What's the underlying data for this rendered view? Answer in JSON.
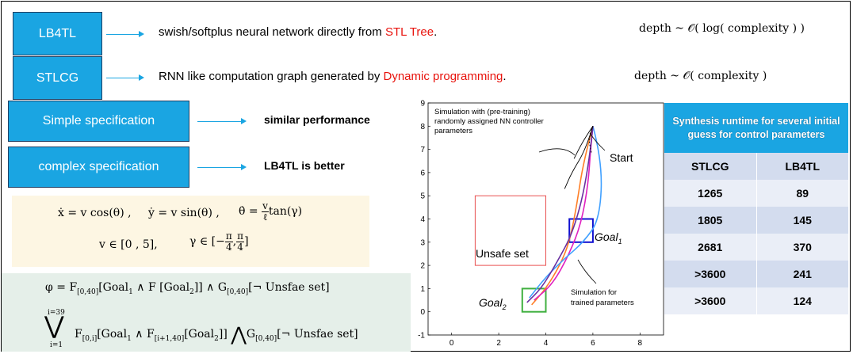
{
  "methods": [
    {
      "label": "LB4TL",
      "description_pre": "swish/softplus neural network directly from ",
      "description_highlight": "STL Tree",
      "description_post": "."
    },
    {
      "label": "STLCG",
      "description_pre": "RNN like computation graph generated by ",
      "description_highlight": "Dynamic programming",
      "description_post": "."
    }
  ],
  "depths": [
    "depth  ~  𝒪( log( complexity ) )",
    "depth  ~  𝒪( complexity )"
  ],
  "specs": [
    {
      "label": "Simple specification",
      "result": "similar performance"
    },
    {
      "label": "complex specification",
      "result": "LB4TL is better"
    }
  ],
  "dynamics": {
    "xdot": "ẋ = v cos(θ) ,",
    "ydot": "ẏ = v sin(θ) ,",
    "thetadot_lhs": "θ̇ =",
    "thetadot_num": "v",
    "thetadot_den": "ℓ",
    "thetadot_rhs": "tan(γ)",
    "v_range": "v ∈ [0 , 5],",
    "gamma_lhs": "γ ∈ [−",
    "pi": "π",
    "four": "4",
    "gamma_mid": ",",
    "gamma_end": "]"
  },
  "spec_formulas": {
    "phi_lhs": "φ = ",
    "phi_f": "F",
    "phi_f_sub": "[0,40]",
    "phi_goal1": "[Goal",
    "one": "1",
    "phi_and_f": " ∧ F [Goal",
    "two": "2",
    "phi_close": "]] ∧ G",
    "phi_g_sub": "[0,40]",
    "phi_tail": "[¬ Unsfae set]",
    "big_or": "⋁",
    "or_upper": "i=39",
    "or_lower": "i=1",
    "f_i": "F",
    "f_i_sub": "[0,i]",
    "mid": "[Goal",
    "mid2": " ∧ F",
    "f2_sub": "[i+1,40]",
    "mid3": "[Goal",
    "mid4": "]] ",
    "big_and": "⋀",
    "g": "G",
    "g_sub": "[0,40]",
    "tail": "[¬ Unsfae set]"
  },
  "plot": {
    "annotation_pretraining": [
      "Simulation with (pre-training)",
      "randomly assigned NN controller",
      "parameters"
    ],
    "start_label": "Start",
    "goal1_label": "Goal",
    "goal1_sub": "1",
    "goal2_label": "Goal",
    "goal2_sub": "2",
    "unsafe_label": "Unsafe set",
    "trained_annotation": [
      "Simulation for",
      "trained parameters"
    ],
    "colors": {
      "unsafe": "#e85050",
      "goal1": "#1010d0",
      "goal2": "#40b040"
    }
  },
  "chart_data": {
    "type": "line",
    "xlim": [
      -1,
      9
    ],
    "ylim": [
      -1,
      9
    ],
    "xticks": [
      "0",
      "2",
      "4",
      "6",
      "8"
    ],
    "yticks": [
      "-1",
      "0",
      "1",
      "2",
      "3",
      "4",
      "5",
      "6",
      "7",
      "8",
      "9"
    ],
    "regions": [
      {
        "x": [
          1,
          4
        ],
        "y": [
          2,
          5
        ]
      },
      {
        "x": [
          5,
          6
        ],
        "y": [
          3,
          4
        ]
      },
      {
        "x": [
          3,
          4
        ],
        "y": [
          0,
          1
        ]
      }
    ],
    "series": [
      {
        "color": "#ff7f27",
        "x": [
          6,
          5.6,
          5.3,
          5.0,
          4.6,
          4.0,
          3.4
        ],
        "y": [
          8,
          6.5,
          4.5,
          3.0,
          2.0,
          1.0,
          0.3
        ]
      },
      {
        "color": "#e020c0",
        "x": [
          6,
          5.9,
          5.8,
          5.5,
          5.0,
          4.3,
          3.5
        ],
        "y": [
          8,
          7,
          5.5,
          3.8,
          2.5,
          1.2,
          0.5
        ]
      },
      {
        "color": "#40a0ff",
        "x": [
          6,
          6.4,
          6.3,
          5.6,
          4.8,
          4.0,
          3.3
        ],
        "y": [
          8,
          6.5,
          4.0,
          3.0,
          2.3,
          1.5,
          0.6
        ]
      },
      {
        "color": "#6a30a0",
        "x": [
          6,
          5.8,
          5.2,
          4.4,
          3.8,
          3.2
        ],
        "y": [
          8,
          6.0,
          3.5,
          2.0,
          1.0,
          0.4
        ]
      },
      {
        "color": "#000000",
        "x": [
          6,
          5.6,
          5.2
        ],
        "y": [
          8,
          7.4,
          6.6
        ]
      },
      {
        "color": "#000000",
        "x": [
          6,
          5.7,
          5.1,
          4.8
        ],
        "y": [
          8,
          7.0,
          6.0,
          5.3
        ]
      },
      {
        "color": "#000000",
        "x": [
          6,
          5.8,
          5.95
        ],
        "y": [
          8,
          7.5,
          6.8
        ]
      }
    ]
  },
  "table": {
    "title": "Synthesis runtime for several initial guess for control parameters",
    "headers": [
      "STLCG",
      "LB4TL"
    ],
    "rows": [
      [
        "1265",
        "89"
      ],
      [
        "1805",
        "145"
      ],
      [
        "2681",
        "370"
      ],
      [
        ">3600",
        "241"
      ],
      [
        ">3600",
        "124"
      ]
    ],
    "colors": {
      "header": "#1aa5e2",
      "row_dark": "#d3dcee",
      "row_light": "#eaeef7"
    }
  }
}
